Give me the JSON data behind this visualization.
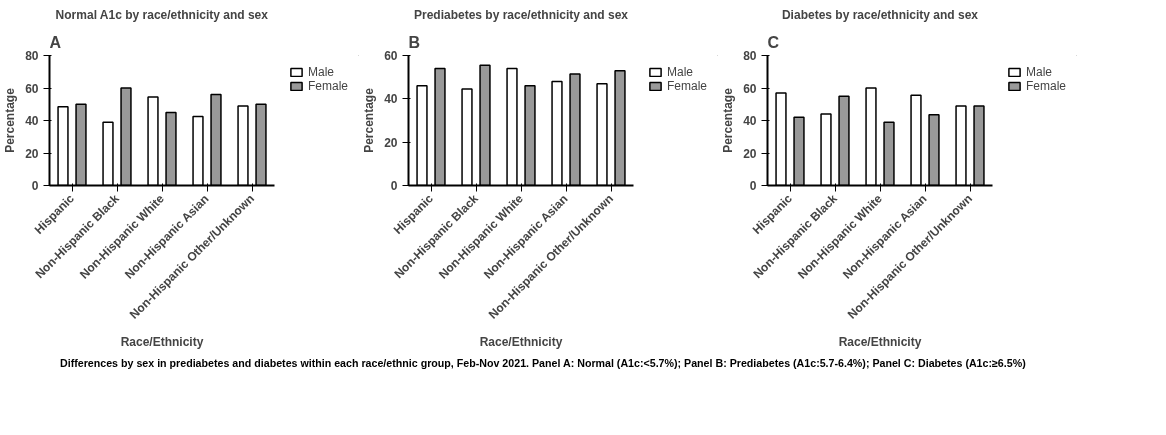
{
  "chart_data": [
    {
      "type": "bar",
      "title": "Normal A1c by race/ethnicity and sex",
      "annotations": [
        "A"
      ],
      "xlabel": "Race/Ethnicity",
      "ylabel": "Percentage",
      "categories": [
        "Hispanic",
        "Non-Hispanic Black",
        "Non-Hispanic White",
        "Non-Hispanic Asian",
        "Non-Hispanic Other/Unknown"
      ],
      "series": [
        {
          "name": "Male",
          "color": "#ffffff",
          "values": [
            48.5,
            39,
            54.5,
            42.5,
            49
          ]
        },
        {
          "name": "Female",
          "color": "#999999",
          "values": [
            50,
            60,
            45,
            56,
            50
          ]
        }
      ],
      "ylim": [
        0,
        80
      ],
      "yticks": [
        0,
        20,
        40,
        60,
        80
      ],
      "grid": false,
      "legend": "top right"
    },
    {
      "type": "bar",
      "title": "Prediabetes by race/ethnicity and sex",
      "annotations": [
        "B"
      ],
      "xlabel": "Race/Ethnicity",
      "ylabel": "Percentage",
      "categories": [
        "Hispanic",
        "Non-Hispanic Black",
        "Non-Hispanic White",
        "Non-Hispanic Asian",
        "Non-Hispanic Other/Unknown"
      ],
      "series": [
        {
          "name": "Male",
          "color": "#ffffff",
          "values": [
            46,
            44.5,
            54,
            48,
            47
          ]
        },
        {
          "name": "Female",
          "color": "#999999",
          "values": [
            54,
            55.5,
            46,
            51.5,
            53
          ]
        }
      ],
      "ylim": [
        0,
        60
      ],
      "yticks": [
        0,
        20,
        40,
        60
      ],
      "grid": false,
      "legend": "top right"
    },
    {
      "type": "bar",
      "title": "Diabetes by race/ethnicity and sex",
      "annotations": [
        "C",
        "Differences by sex in prediabetes and diabetes within each race/ethnic group, Feb-Nov 2021. Panel A: Normal (A1c:<5.7%); Panel B: Prediabetes (A1c:5.7-6.4%); Panel C: Diabetes (A1c:≥6.5%)"
      ],
      "xlabel": "Race/Ethnicity",
      "ylabel": "Percentage",
      "categories": [
        "Hispanic",
        "Non-Hispanic Black",
        "Non-Hispanic White",
        "Non-Hispanic Asian",
        "Non-Hispanic Other/Unknown"
      ],
      "series": [
        {
          "name": "Male",
          "color": "#ffffff",
          "values": [
            57,
            44,
            60,
            55.5,
            49
          ]
        },
        {
          "name": "Female",
          "color": "#999999",
          "values": [
            42,
            55,
            39,
            43.5,
            49
          ]
        }
      ],
      "ylim": [
        0,
        80
      ],
      "yticks": [
        0,
        20,
        40,
        60,
        80
      ],
      "grid": false,
      "legend": "top right"
    }
  ]
}
